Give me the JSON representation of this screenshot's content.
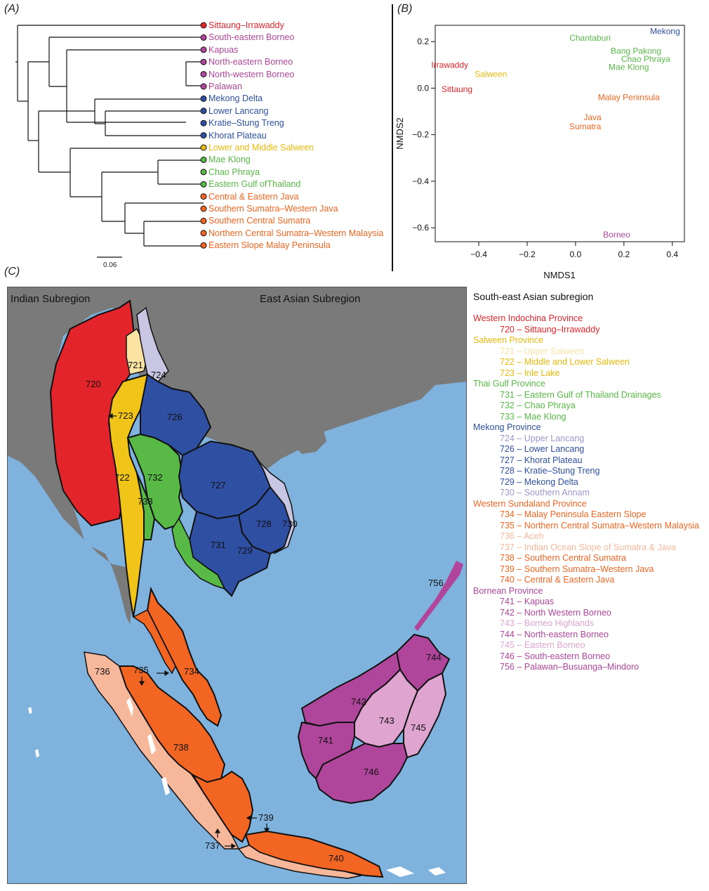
{
  "panels": {
    "a_label": "(A)",
    "b_label": "(B)",
    "c_label": "(C)"
  },
  "colors": {
    "red": "#e3242b",
    "magenta": "#b0469b",
    "pink": "#c050a8",
    "blue": "#2e4fa2",
    "yellow": "#f0c419",
    "green": "#58b947",
    "orange": "#f26522",
    "lightpurple": "#c9c6e4",
    "lightyellow": "#fbe3a4",
    "lightorange": "#f7b79b",
    "lightpink": "#dfa4cf",
    "sea": "#7fb3de",
    "land": "#7a7a7a"
  },
  "tree": {
    "scale_label": "0.06",
    "tips": [
      {
        "label": "Sittaung–Irrawaddy",
        "color": "#e3242b"
      },
      {
        "label": "South-eastern Borneo",
        "color": "#b0469b"
      },
      {
        "label": "Kapuas",
        "color": "#b0469b"
      },
      {
        "label": "North-eastern Borneo",
        "color": "#b0469b"
      },
      {
        "label": "North-western Borneo",
        "color": "#b0469b"
      },
      {
        "label": "Palawan",
        "color": "#b0469b"
      },
      {
        "label": "Mekong Delta",
        "color": "#2e4fa2"
      },
      {
        "label": "Lower Lancang",
        "color": "#2e4fa2"
      },
      {
        "label": "Kratie–Stung Treng",
        "color": "#2e4fa2"
      },
      {
        "label": "Khorat Plateau",
        "color": "#2e4fa2"
      },
      {
        "label": "Lower and Middle Salween",
        "color": "#e8b90c"
      },
      {
        "label": "Mae Klong",
        "color": "#58b947"
      },
      {
        "label": "Chao Phraya",
        "color": "#58b947"
      },
      {
        "label": "Eastern Gulf ofThailand",
        "color": "#58b947"
      },
      {
        "label": "Central & Eastern Java",
        "color": "#f26522"
      },
      {
        "label": "Southern Sumatra–Western Java",
        "color": "#f26522"
      },
      {
        "label": "Southern Central Sumatra",
        "color": "#f26522"
      },
      {
        "label": "Northern Central Sumatra–Western Malaysia",
        "color": "#f26522"
      },
      {
        "label": "Eastern Slope Malay Peninsula",
        "color": "#f26522"
      }
    ]
  },
  "chart_data": {
    "type": "scatter",
    "xlabel": "NMDS1",
    "ylabel": "NMDS2",
    "xlim": [
      -0.58,
      0.45
    ],
    "ylim": [
      -0.66,
      0.27
    ],
    "xticks": [
      -0.4,
      -0.2,
      0.0,
      0.2,
      0.4
    ],
    "xtick_labels": [
      "−0.4",
      "−0.2",
      "0.0",
      "0.2",
      "0.4"
    ],
    "yticks": [
      0.2,
      0.0,
      -0.2,
      -0.4,
      -0.6
    ],
    "ytick_labels": [
      "0.2",
      "0.0",
      "−0.2",
      "−0.4",
      "−0.6"
    ],
    "points": [
      {
        "label": "Mekong",
        "x": 0.37,
        "y": 0.245,
        "color": "#2e4fa2"
      },
      {
        "label": "Chantaburi",
        "x": 0.06,
        "y": 0.215,
        "color": "#58b947"
      },
      {
        "label": "Bang Pakong",
        "x": 0.25,
        "y": 0.16,
        "color": "#58b947"
      },
      {
        "label": "Chao Phraya",
        "x": 0.29,
        "y": 0.125,
        "color": "#58b947"
      },
      {
        "label": "Mae Klong",
        "x": 0.22,
        "y": 0.09,
        "color": "#58b947"
      },
      {
        "label": "Irrawaddy",
        "x": -0.52,
        "y": 0.1,
        "color": "#e3242b"
      },
      {
        "label": "Salween",
        "x": -0.35,
        "y": 0.06,
        "color": "#e8b90c"
      },
      {
        "label": "Sittaung",
        "x": -0.49,
        "y": -0.005,
        "color": "#e3242b"
      },
      {
        "label": "Malay Peninsula",
        "x": 0.22,
        "y": -0.04,
        "color": "#f26522"
      },
      {
        "label": "Java",
        "x": 0.07,
        "y": -0.125,
        "color": "#f26522"
      },
      {
        "label": "Sumatra",
        "x": 0.04,
        "y": -0.165,
        "color": "#f26522"
      },
      {
        "label": "Borneo",
        "x": 0.17,
        "y": -0.63,
        "color": "#b0469b"
      }
    ]
  },
  "map": {
    "indian_label": "Indian Subregion",
    "east_label": "East Asian Subregion"
  },
  "legend": {
    "title": "South-east Asian subregion",
    "groups": [
      {
        "province": "Western Indochina Province",
        "color": "#e3242b",
        "items": [
          {
            "text": "720 – Sittaung–Irrawaddy",
            "color": "#e3242b"
          }
        ]
      },
      {
        "province": "Salween Province",
        "color": "#e8b90c",
        "items": [
          {
            "text": "721 – Upper Salween",
            "color": "#fbe3a4"
          },
          {
            "text": "722 – Middle and Lower Salween",
            "color": "#e8b90c"
          },
          {
            "text": "723 – Inle Lake",
            "color": "#e8b90c"
          }
        ]
      },
      {
        "province": "Thai Gulf Province",
        "color": "#58b947",
        "items": [
          {
            "text": "731 – Eastern Gulf of Thailand Drainages",
            "color": "#58b947"
          },
          {
            "text": "732 – Chao Phraya",
            "color": "#58b947"
          },
          {
            "text": "733 – Mae Klong",
            "color": "#58b947"
          }
        ]
      },
      {
        "province": "Mekong Province",
        "color": "#2e4fa2",
        "items": [
          {
            "text": "724 – Upper Lancang",
            "color": "#9b97d0"
          },
          {
            "text": "726 – Lower Lancang",
            "color": "#2e4fa2"
          },
          {
            "text": "727 – Khorat Plateau",
            "color": "#2e4fa2"
          },
          {
            "text": "728 – Kratie–Stung Treng",
            "color": "#2e4fa2"
          },
          {
            "text": "729 – Mekong Delta",
            "color": "#2e4fa2"
          },
          {
            "text": "730 – Southern Annam",
            "color": "#9b97d0"
          }
        ]
      },
      {
        "province": "Western Sundaland Province",
        "color": "#f26522",
        "items": [
          {
            "text": "734 – Malay Peninsula Eastern Slope",
            "color": "#f26522"
          },
          {
            "text": "735 – Northern Central Sumatra–Western Malaysia",
            "color": "#f26522"
          },
          {
            "text": "736 – Aceh",
            "color": "#f7b79b"
          },
          {
            "text": "737 – Indian Ocean Slope of Sumatra & Java",
            "color": "#f7b79b"
          },
          {
            "text": "738 – Southern Central Sumatra",
            "color": "#f26522"
          },
          {
            "text": "739 – Southern Sumatra–Western Java",
            "color": "#f26522"
          },
          {
            "text": "740 – Central & Eastern Java",
            "color": "#f26522"
          }
        ]
      },
      {
        "province": "Bornean Province",
        "color": "#b0469b",
        "items": [
          {
            "text": "741 – Kapuas",
            "color": "#b0469b"
          },
          {
            "text": "742 – North Western Borneo",
            "color": "#b0469b"
          },
          {
            "text": "743 – Borneo Highlands",
            "color": "#dfa4cf"
          },
          {
            "text": "744 – North-eastern Borneo",
            "color": "#b0469b"
          },
          {
            "text": "745 – Eastern Borneo",
            "color": "#dfa4cf"
          },
          {
            "text": "746 – South-eastern Borneo",
            "color": "#b0469b"
          },
          {
            "text": "756 – Palawan–Busuanga–Mindoro",
            "color": "#b0469b"
          }
        ]
      }
    ]
  },
  "region_labels": {
    "r720": "720",
    "r721": "721",
    "r722": "722",
    "r723": "723",
    "r724": "724",
    "r726": "726",
    "r727": "727",
    "r728": "728",
    "r729": "729",
    "r730": "730",
    "r731": "731",
    "r732": "732",
    "r733": "733",
    "r734": "734",
    "r735": "735",
    "r736": "736",
    "r737": "737",
    "r738": "738",
    "r739": "739",
    "r740": "740",
    "r741": "741",
    "r742": "742",
    "r743": "743",
    "r745": "745",
    "r746": "746",
    "r744": "744",
    "r756": "756"
  }
}
